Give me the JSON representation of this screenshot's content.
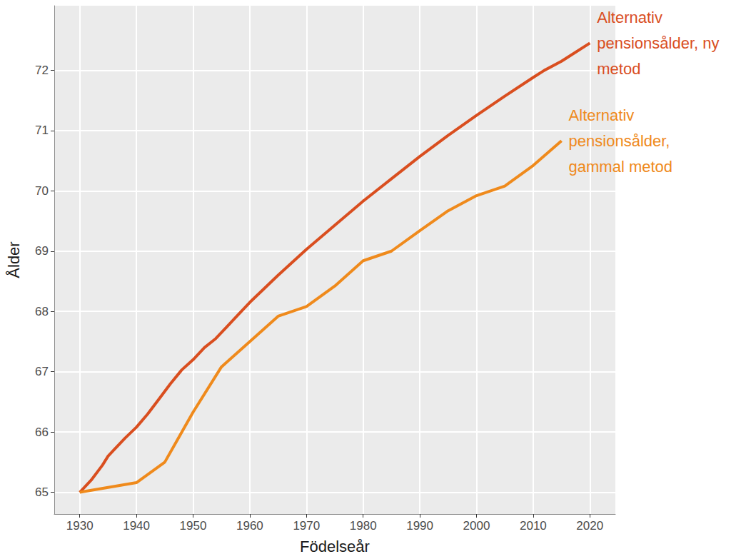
{
  "chart_data": {
    "type": "line",
    "x_label": "Födelseår",
    "y_label": "Ålder",
    "xlim": [
      1925.5,
      2024.5
    ],
    "xticks": [
      1930,
      1940,
      1950,
      1960,
      1970,
      1980,
      1990,
      2000,
      2010,
      2020
    ],
    "ylim": [
      64.64,
      73.07
    ],
    "yticks": [
      65,
      66,
      67,
      68,
      69,
      70,
      71,
      72
    ],
    "grid": true,
    "series": [
      {
        "name": "Alternativ pensionsålder, ny metod",
        "color": "#d94e1f",
        "x": [
          1930,
          1932,
          1934,
          1935,
          1936,
          1938,
          1940,
          1942,
          1944,
          1946,
          1948,
          1950,
          1952,
          1954,
          1956,
          1958,
          1960,
          1965,
          1970,
          1975,
          1980,
          1985,
          1990,
          1995,
          2000,
          2005,
          2010,
          2012,
          2015,
          2020
        ],
        "values": [
          65,
          65.2,
          65.45,
          65.6,
          65.7,
          65.9,
          66.08,
          66.3,
          66.55,
          66.8,
          67.03,
          67.2,
          67.4,
          67.55,
          67.75,
          67.95,
          68.15,
          68.6,
          69.03,
          69.43,
          69.83,
          70.2,
          70.57,
          70.92,
          71.25,
          71.57,
          71.88,
          72.0,
          72.15,
          72.45
        ]
      },
      {
        "name": "Alternativ pensionsålder, gammal metod",
        "color": "#ef8a1c",
        "x": [
          1930,
          1940,
          1945,
          1950,
          1955,
          1960,
          1965,
          1970,
          1975,
          1980,
          1985,
          1990,
          1995,
          2000,
          2005,
          2010,
          2015
        ],
        "values": [
          65,
          65.16,
          65.5,
          66.33,
          67.08,
          67.5,
          67.92,
          68.08,
          68.42,
          68.84,
          69.0,
          69.34,
          69.67,
          69.92,
          70.08,
          70.42,
          70.83
        ]
      }
    ]
  }
}
